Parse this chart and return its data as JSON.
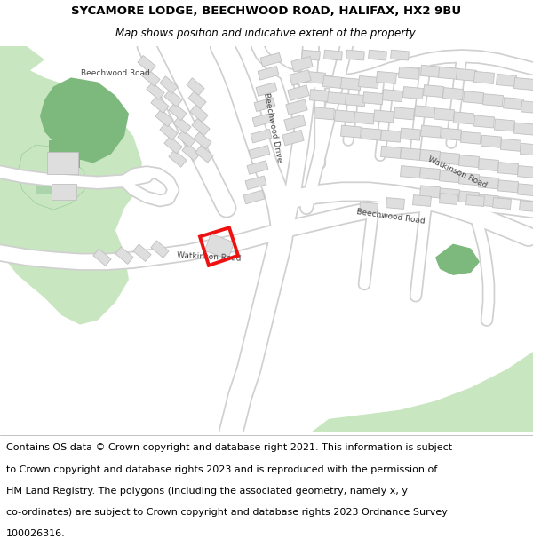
{
  "title_line1": "SYCAMORE LODGE, BEECHWOOD ROAD, HALIFAX, HX2 9BU",
  "title_line2": "Map shows position and indicative extent of the property.",
  "footer_lines": [
    "Contains OS data © Crown copyright and database right 2021. This information is subject",
    "to Crown copyright and database rights 2023 and is reproduced with the permission of",
    "HM Land Registry. The polygons (including the associated geometry, namely x, y",
    "co-ordinates) are subject to Crown copyright and database rights 2023 Ordnance Survey",
    "100026316."
  ],
  "title_fontsize": 9.5,
  "subtitle_fontsize": 8.5,
  "footer_fontsize": 8.0,
  "fig_width": 6.0,
  "fig_height": 6.25,
  "header_bg": "#ffffff",
  "footer_bg": "#ffffff",
  "map_bg": "#f7f7f7",
  "road_color": "#ffffff",
  "road_outline": "#d0d0d0",
  "green_light": "#c8e6c0",
  "green_dark": "#7db87d",
  "green_medium": "#9dcc9d",
  "building_color": "#dedede",
  "building_outline": "#c0c0c0",
  "highlight_color": "#ee1111",
  "label_color": "#444444"
}
